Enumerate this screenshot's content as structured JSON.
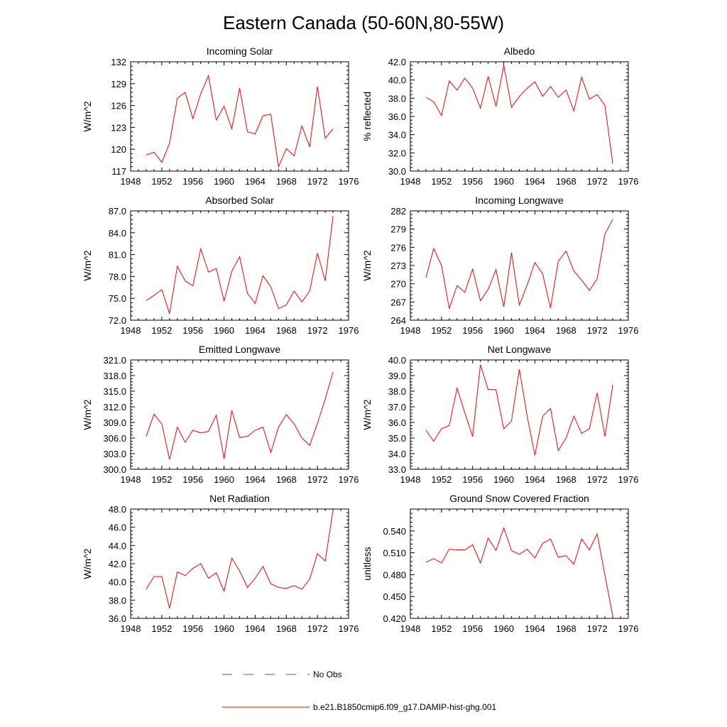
{
  "figure": {
    "title": "Eastern Canada (50-60N,80-55W)"
  },
  "legend": {
    "entries": [
      "No Obs",
      "b.e21.B1850cmip6.f09_g17.DAMIP-hist-ghg.001"
    ]
  },
  "colors": {
    "model": "#ff0000",
    "obs": "#5555aa",
    "axis": "#000000"
  },
  "chart_data": [
    {
      "type": "line",
      "title": "Incoming Solar",
      "xlabel": "",
      "ylabel": "W/m^2",
      "xlim": [
        1948,
        1976
      ],
      "ylim": [
        117,
        132
      ],
      "xticks": [
        1948,
        1952,
        1956,
        1960,
        1964,
        1968,
        1972,
        1976
      ],
      "yticks": [
        117,
        120,
        123,
        126,
        129,
        132
      ],
      "ydec": 0,
      "x": [
        1950,
        1951,
        1952,
        1953,
        1954,
        1955,
        1956,
        1957,
        1958,
        1959,
        1960,
        1961,
        1962,
        1963,
        1964,
        1965,
        1966,
        1967,
        1968,
        1969,
        1970,
        1971,
        1972,
        1973,
        1974
      ],
      "series": [
        {
          "name": "b.e21.B1850cmip6.f09_g17.DAMIP-hist-ghg.001",
          "values": [
            119.2,
            119.6,
            118.2,
            120.8,
            127.0,
            127.8,
            124.2,
            127.6,
            130.1,
            124.0,
            125.9,
            122.8,
            128.4,
            122.4,
            122.1,
            124.6,
            124.8,
            117.6,
            120.1,
            119.1,
            123.2,
            120.3,
            128.6,
            121.5,
            122.8
          ]
        }
      ]
    },
    {
      "type": "line",
      "title": "Albedo",
      "xlabel": "",
      "ylabel": "% reflected",
      "xlim": [
        1948,
        1976
      ],
      "ylim": [
        30,
        42
      ],
      "xticks": [
        1948,
        1952,
        1956,
        1960,
        1964,
        1968,
        1972,
        1976
      ],
      "yticks": [
        30,
        32,
        34,
        36,
        38,
        40,
        42
      ],
      "ydec": 1,
      "x": [
        1950,
        1951,
        1952,
        1953,
        1954,
        1955,
        1956,
        1957,
        1958,
        1959,
        1960,
        1961,
        1962,
        1963,
        1964,
        1965,
        1966,
        1967,
        1968,
        1969,
        1970,
        1971,
        1972,
        1973,
        1974
      ],
      "series": [
        {
          "name": "b.e21.B1850cmip6.f09_g17.DAMIP-hist-ghg.001",
          "values": [
            38.1,
            37.6,
            36.1,
            39.9,
            38.9,
            40.2,
            39.1,
            36.9,
            40.4,
            37.1,
            41.6,
            37.0,
            38.2,
            39.1,
            39.8,
            38.2,
            39.3,
            38.1,
            38.9,
            36.6,
            40.3,
            37.9,
            38.4,
            37.2,
            30.8
          ]
        }
      ]
    },
    {
      "type": "line",
      "title": "Absorbed Solar",
      "xlabel": "",
      "ylabel": "W/m^2",
      "xlim": [
        1948,
        1976
      ],
      "ylim": [
        72,
        87
      ],
      "xticks": [
        1948,
        1952,
        1956,
        1960,
        1964,
        1968,
        1972,
        1976
      ],
      "yticks": [
        72,
        75,
        78,
        81,
        84,
        87
      ],
      "ydec": 1,
      "x": [
        1950,
        1951,
        1952,
        1953,
        1954,
        1955,
        1956,
        1957,
        1958,
        1959,
        1960,
        1961,
        1962,
        1963,
        1964,
        1965,
        1966,
        1967,
        1968,
        1969,
        1970,
        1971,
        1972,
        1973,
        1974
      ],
      "series": [
        {
          "name": "b.e21.B1850cmip6.f09_g17.DAMIP-hist-ghg.001",
          "values": [
            74.7,
            75.4,
            76.2,
            72.9,
            79.4,
            77.4,
            76.7,
            81.8,
            78.6,
            79.1,
            74.6,
            78.7,
            80.7,
            75.7,
            74.3,
            78.1,
            76.6,
            73.6,
            74.1,
            76.0,
            74.5,
            76.0,
            81.2,
            77.4,
            86.3
          ]
        }
      ]
    },
    {
      "type": "line",
      "title": "Incoming Longwave",
      "xlabel": "",
      "ylabel": "W/m^2",
      "xlim": [
        1948,
        1976
      ],
      "ylim": [
        264,
        282
      ],
      "xticks": [
        1948,
        1952,
        1956,
        1960,
        1964,
        1968,
        1972,
        1976
      ],
      "yticks": [
        264,
        267,
        270,
        273,
        276,
        279,
        282
      ],
      "ydec": 0,
      "x": [
        1950,
        1951,
        1952,
        1953,
        1954,
        1955,
        1956,
        1957,
        1958,
        1959,
        1960,
        1961,
        1962,
        1963,
        1964,
        1965,
        1966,
        1967,
        1968,
        1969,
        1970,
        1971,
        1972,
        1973,
        1974
      ],
      "series": [
        {
          "name": "b.e21.B1850cmip6.f09_g17.DAMIP-hist-ghg.001",
          "values": [
            271.0,
            275.8,
            273.0,
            265.9,
            269.7,
            268.6,
            272.4,
            267.2,
            269.1,
            272.3,
            266.2,
            275.1,
            266.5,
            269.8,
            273.5,
            271.6,
            266.0,
            273.7,
            275.4,
            272.1,
            270.6,
            268.9,
            270.8,
            278.2,
            280.6
          ]
        }
      ]
    },
    {
      "type": "line",
      "title": "Emitted Longwave",
      "xlabel": "",
      "ylabel": "W/m^2",
      "xlim": [
        1948,
        1976
      ],
      "ylim": [
        300,
        321
      ],
      "xticks": [
        1948,
        1952,
        1956,
        1960,
        1964,
        1968,
        1972,
        1976
      ],
      "yticks": [
        300,
        303,
        306,
        309,
        312,
        315,
        318,
        321
      ],
      "ydec": 1,
      "x": [
        1950,
        1951,
        1952,
        1953,
        1954,
        1955,
        1956,
        1957,
        1958,
        1959,
        1960,
        1961,
        1962,
        1963,
        1964,
        1965,
        1966,
        1967,
        1968,
        1969,
        1970,
        1971,
        1972,
        1973,
        1974
      ],
      "series": [
        {
          "name": "b.e21.B1850cmip6.f09_g17.DAMIP-hist-ghg.001",
          "values": [
            306.3,
            310.6,
            308.7,
            301.9,
            308.1,
            305.2,
            307.5,
            307.0,
            307.3,
            310.4,
            302.0,
            311.3,
            306.1,
            306.3,
            307.5,
            308.1,
            303.2,
            308.1,
            310.5,
            308.7,
            306.0,
            304.6,
            308.8,
            313.5,
            318.7
          ]
        }
      ]
    },
    {
      "type": "line",
      "title": "Net Longwave",
      "xlabel": "",
      "ylabel": "W/m^2",
      "xlim": [
        1948,
        1976
      ],
      "ylim": [
        33,
        40
      ],
      "xticks": [
        1948,
        1952,
        1956,
        1960,
        1964,
        1968,
        1972,
        1976
      ],
      "yticks": [
        33,
        34,
        35,
        36,
        37,
        38,
        39,
        40
      ],
      "ydec": 1,
      "x": [
        1950,
        1951,
        1952,
        1953,
        1954,
        1955,
        1956,
        1957,
        1958,
        1959,
        1960,
        1961,
        1962,
        1963,
        1964,
        1965,
        1966,
        1967,
        1968,
        1969,
        1970,
        1971,
        1972,
        1973,
        1974
      ],
      "series": [
        {
          "name": "b.e21.B1850cmip6.f09_g17.DAMIP-hist-ghg.001",
          "values": [
            35.5,
            34.8,
            35.6,
            35.8,
            38.2,
            36.6,
            35.1,
            39.7,
            38.1,
            38.1,
            35.6,
            36.1,
            39.4,
            36.4,
            33.9,
            36.4,
            36.9,
            34.2,
            35.0,
            36.4,
            35.3,
            35.6,
            37.9,
            35.1,
            38.4
          ]
        }
      ]
    },
    {
      "type": "line",
      "title": "Net Radiation",
      "xlabel": "",
      "ylabel": "W/m^2",
      "xlim": [
        1948,
        1976
      ],
      "ylim": [
        36,
        48
      ],
      "xticks": [
        1948,
        1952,
        1956,
        1960,
        1964,
        1968,
        1972,
        1976
      ],
      "yticks": [
        36,
        38,
        40,
        42,
        44,
        46,
        48
      ],
      "ydec": 1,
      "x": [
        1950,
        1951,
        1952,
        1953,
        1954,
        1955,
        1956,
        1957,
        1958,
        1959,
        1960,
        1961,
        1962,
        1963,
        1964,
        1965,
        1966,
        1967,
        1968,
        1969,
        1970,
        1971,
        1972,
        1973,
        1974
      ],
      "series": [
        {
          "name": "b.e21.B1850cmip6.f09_g17.DAMIP-hist-ghg.001",
          "values": [
            39.2,
            40.6,
            40.6,
            37.1,
            41.1,
            40.7,
            41.5,
            42.0,
            40.4,
            41.0,
            39.0,
            42.6,
            41.2,
            39.4,
            40.4,
            41.7,
            39.8,
            39.4,
            39.3,
            39.6,
            39.2,
            40.3,
            43.1,
            42.3,
            47.9
          ]
        }
      ]
    },
    {
      "type": "line",
      "title": "Ground Snow Covered Fraction",
      "xlabel": "",
      "ylabel": "unitless",
      "xlim": [
        1948,
        1976
      ],
      "ylim": [
        0.42,
        0.57
      ],
      "xticks": [
        1948,
        1952,
        1956,
        1960,
        1964,
        1968,
        1972,
        1976
      ],
      "yticks": [
        0.42,
        0.45,
        0.48,
        0.51,
        0.54
      ],
      "ydec": 3,
      "x": [
        1950,
        1951,
        1952,
        1953,
        1954,
        1955,
        1956,
        1957,
        1958,
        1959,
        1960,
        1961,
        1962,
        1963,
        1964,
        1965,
        1966,
        1967,
        1968,
        1969,
        1970,
        1971,
        1972,
        1973,
        1974
      ],
      "series": [
        {
          "name": "b.e21.B1850cmip6.f09_g17.DAMIP-hist-ghg.001",
          "values": [
            0.497,
            0.502,
            0.496,
            0.515,
            0.514,
            0.514,
            0.521,
            0.496,
            0.53,
            0.513,
            0.544,
            0.513,
            0.508,
            0.515,
            0.503,
            0.523,
            0.529,
            0.504,
            0.506,
            0.494,
            0.529,
            0.514,
            0.536,
            0.479,
            0.423
          ]
        }
      ]
    }
  ]
}
